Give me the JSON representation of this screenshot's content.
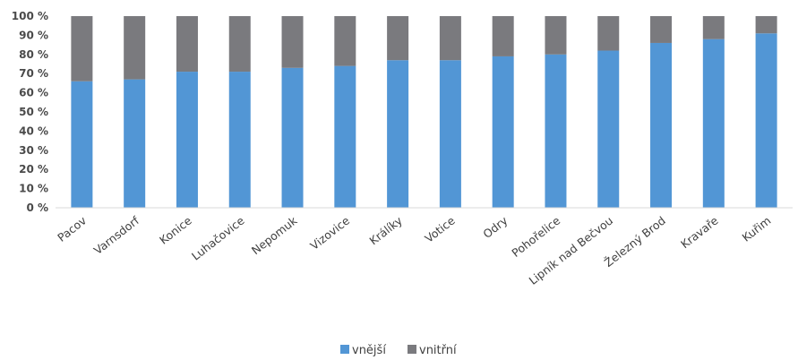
{
  "chart_data": {
    "type": "bar",
    "stacked": true,
    "categories": [
      "Pacov",
      "Varnsdorf",
      "Konice",
      "Luhačovice",
      "Nepomuk",
      "Vizovice",
      "Králíky",
      "Votice",
      "Odry",
      "Pohořelice",
      "Lipník nad Bečvou",
      "Železný Brod",
      "Kravaře",
      "Kuřim"
    ],
    "series": [
      {
        "name": "vnější",
        "color": "#5296d5",
        "values": [
          66,
          67,
          71,
          71,
          73,
          74,
          77,
          77,
          79,
          80,
          82,
          86,
          88,
          91
        ]
      },
      {
        "name": "vnitřní",
        "color": "#7a7a7e",
        "values": [
          34,
          33,
          29,
          29,
          27,
          26,
          23,
          23,
          21,
          20,
          18,
          14,
          12,
          9
        ]
      }
    ],
    "y_ticks": [
      "0 %",
      "10 %",
      "20 %",
      "30 %",
      "40 %",
      "50 %",
      "60 %",
      "70 %",
      "80 %",
      "90 %",
      "100 %"
    ],
    "ylim": [
      0,
      100
    ],
    "grid": false,
    "legend_position": "bottom",
    "title": "",
    "xlabel": "",
    "ylabel": ""
  }
}
